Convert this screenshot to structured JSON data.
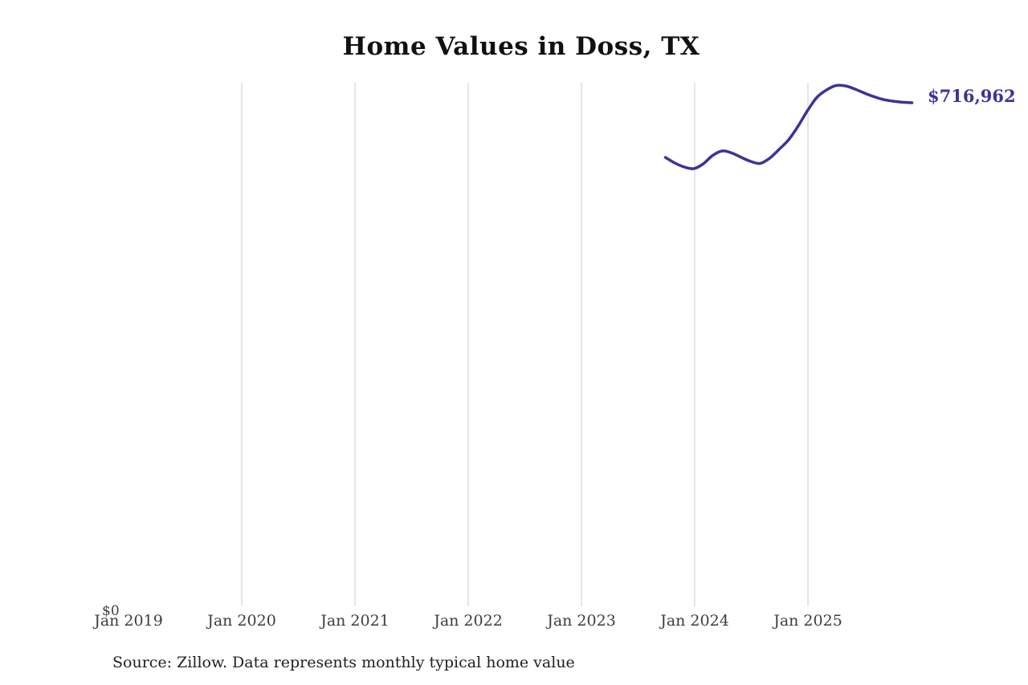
{
  "title": "Home Values in Doss, TX",
  "source_note": "Source: Zillow. Data represents monthly typical home value",
  "y_zero_label": "$0",
  "latest_value_label": "$716,962",
  "colors": {
    "line": "#3b3497",
    "value_label": "#3b3497",
    "gridline": "#cccccc",
    "axis_text": "#3d3d3d",
    "title_text": "#111111",
    "source_text": "#202020",
    "background": "#ffffff"
  },
  "x_axis": {
    "tick_labels": [
      "Jan 2019",
      "Jan 2020",
      "Jan 2021",
      "Jan 2022",
      "Jan 2023",
      "Jan 2024",
      "Jan 2025"
    ]
  },
  "chart_data": {
    "type": "line",
    "title": "Home Values in Doss, TX",
    "xlabel": "",
    "ylabel": "",
    "ylim": [
      0,
      745500
    ],
    "x_range_labeled": [
      "Jan 2019",
      "Jan 2025"
    ],
    "gridlines": "vertical, at each labeled January, light gray",
    "legend": "none",
    "end_annotation": "$716,962",
    "x": [
      "Oct 2023",
      "Nov 2023",
      "Dec 2023",
      "Jan 2024",
      "Feb 2024",
      "Mar 2024",
      "Apr 2024",
      "May 2024",
      "Jun 2024",
      "Jul 2024",
      "Aug 2024",
      "Sep 2024",
      "Oct 2024",
      "Nov 2024",
      "Dec 2024",
      "Jan 2025",
      "Feb 2025",
      "Mar 2025",
      "Apr 2025",
      "May 2025",
      "Jun 2025",
      "Jul 2025",
      "Aug 2025",
      "Sep 2025",
      "Oct 2025",
      "Nov 2025",
      "Dec 2025"
    ],
    "values": [
      639200,
      631200,
      625500,
      623200,
      630100,
      642100,
      648400,
      645500,
      639200,
      633500,
      630600,
      638100,
      650700,
      664400,
      683800,
      706100,
      725000,
      735300,
      741600,
      741000,
      736400,
      730700,
      725600,
      721500,
      719300,
      717800,
      716962
    ]
  }
}
